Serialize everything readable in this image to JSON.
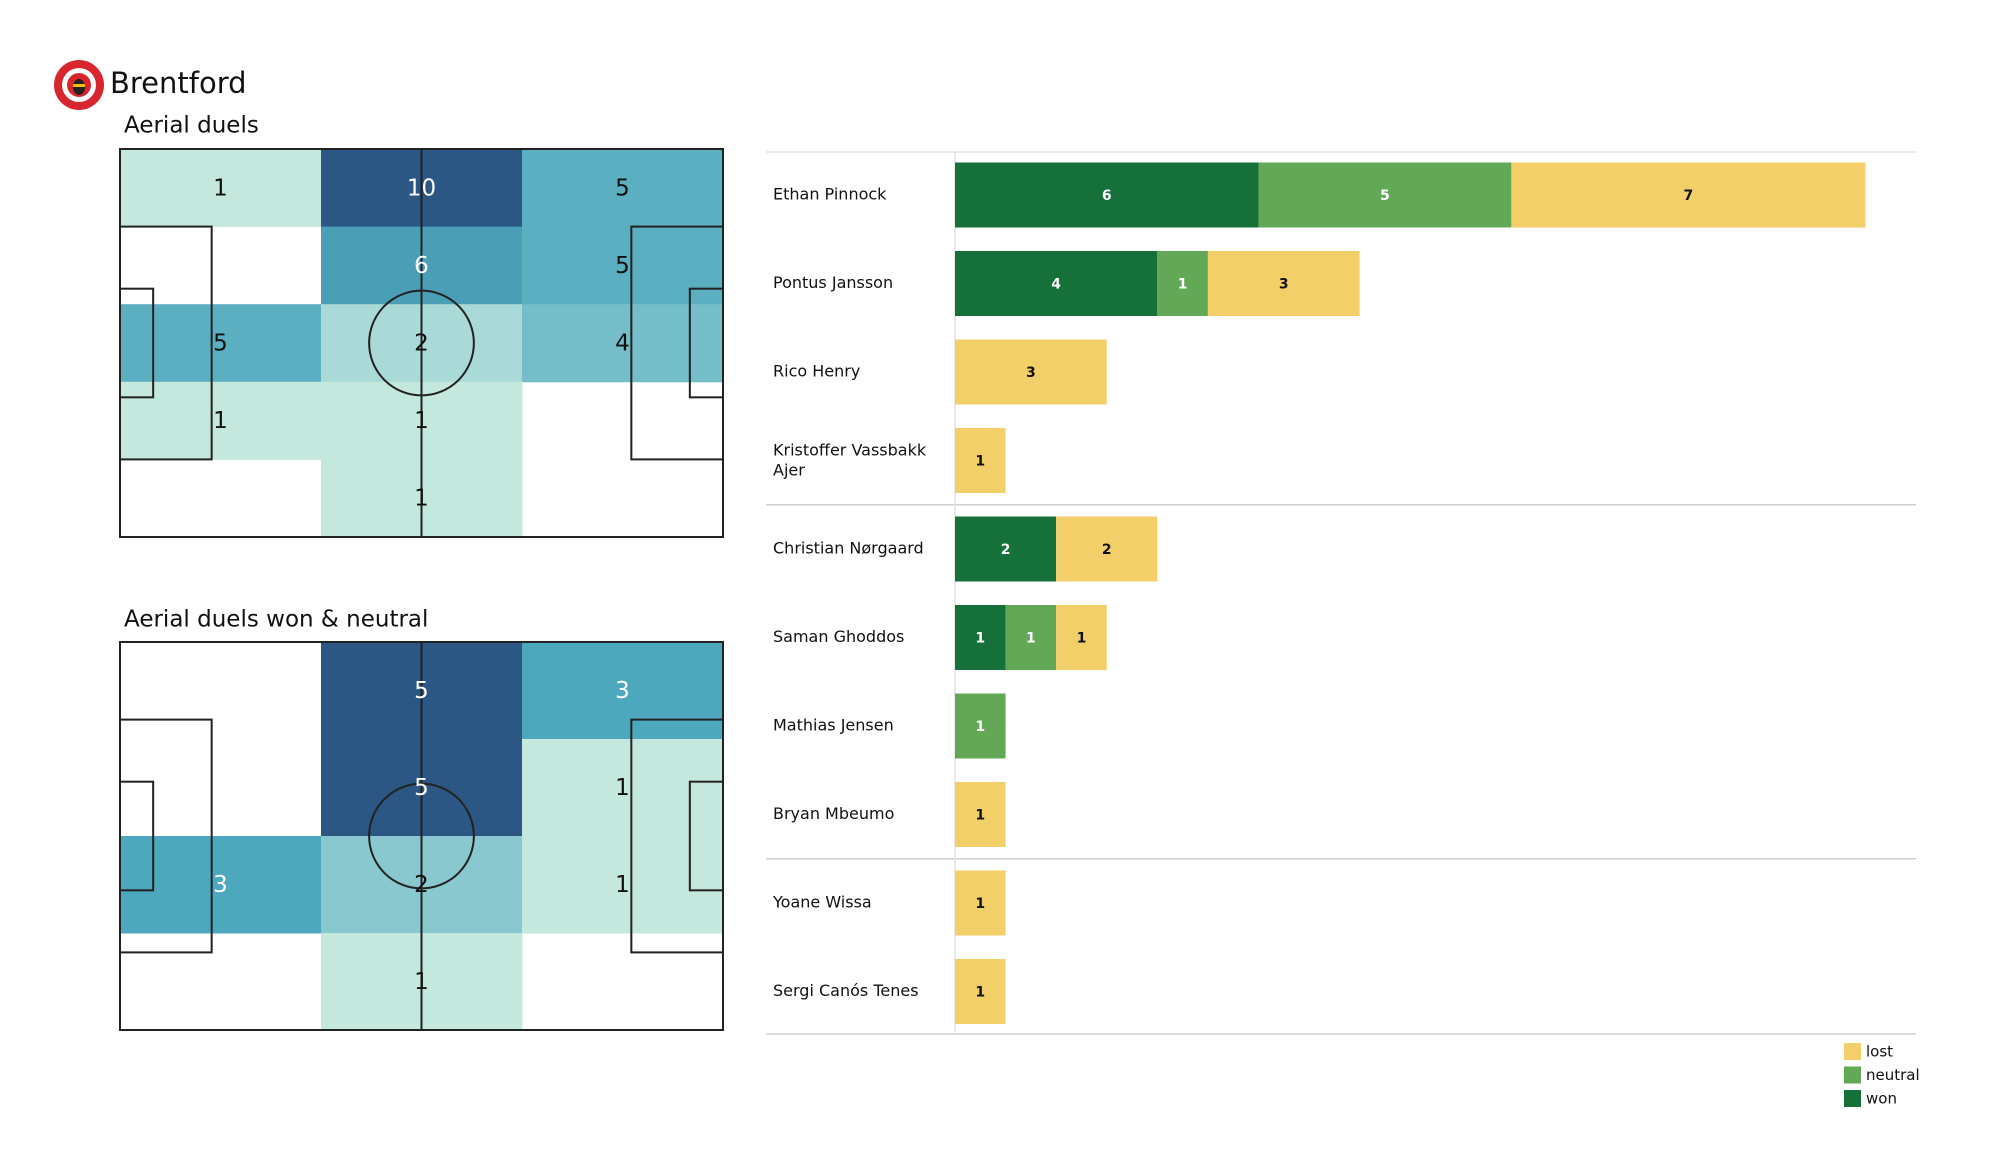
{
  "header": {
    "team": "Brentford"
  },
  "chart_data": [
    {
      "type": "heatmap",
      "title": "Aerial duels",
      "values": [
        [
          1,
          10,
          5
        ],
        [
          null,
          6,
          5
        ],
        [
          5,
          2,
          4
        ],
        [
          1,
          1,
          null
        ],
        [
          null,
          1,
          null
        ]
      ],
      "colormap": [
        "#c4e8de",
        "#4ea8bd",
        "#2c5684"
      ]
    },
    {
      "type": "heatmap",
      "title": "Aerial duels won & neutral",
      "values": [
        [
          null,
          5,
          3
        ],
        [
          null,
          5,
          1
        ],
        [
          3,
          2,
          1
        ],
        [
          null,
          1,
          null
        ]
      ],
      "colormap": [
        "#c4e8de",
        "#4ea8bd",
        "#2c5684"
      ]
    },
    {
      "type": "bar",
      "orientation": "horizontal",
      "stacked": true,
      "categories": [
        "Ethan Pinnock",
        "Pontus Jansson",
        "Rico Henry",
        "Kristoffer Vassbakk Ajer",
        "Christian Nørgaard",
        "Saman Ghoddos",
        "Mathias Jensen",
        "Bryan Mbeumo",
        "Yoane Wissa",
        "Sergi Canós Tenes"
      ],
      "series": [
        {
          "name": "won",
          "color": "#15703a",
          "values": [
            6,
            4,
            0,
            0,
            2,
            1,
            0,
            0,
            0,
            0
          ]
        },
        {
          "name": "neutral",
          "color": "#62a856",
          "values": [
            5,
            1,
            0,
            0,
            0,
            1,
            1,
            0,
            0,
            0
          ]
        },
        {
          "name": "lost",
          "color": "#f2cf69",
          "values": [
            7,
            3,
            3,
            1,
            2,
            1,
            0,
            1,
            1,
            1
          ]
        }
      ],
      "xlim": [
        0,
        19
      ],
      "legend": "lower right"
    }
  ]
}
